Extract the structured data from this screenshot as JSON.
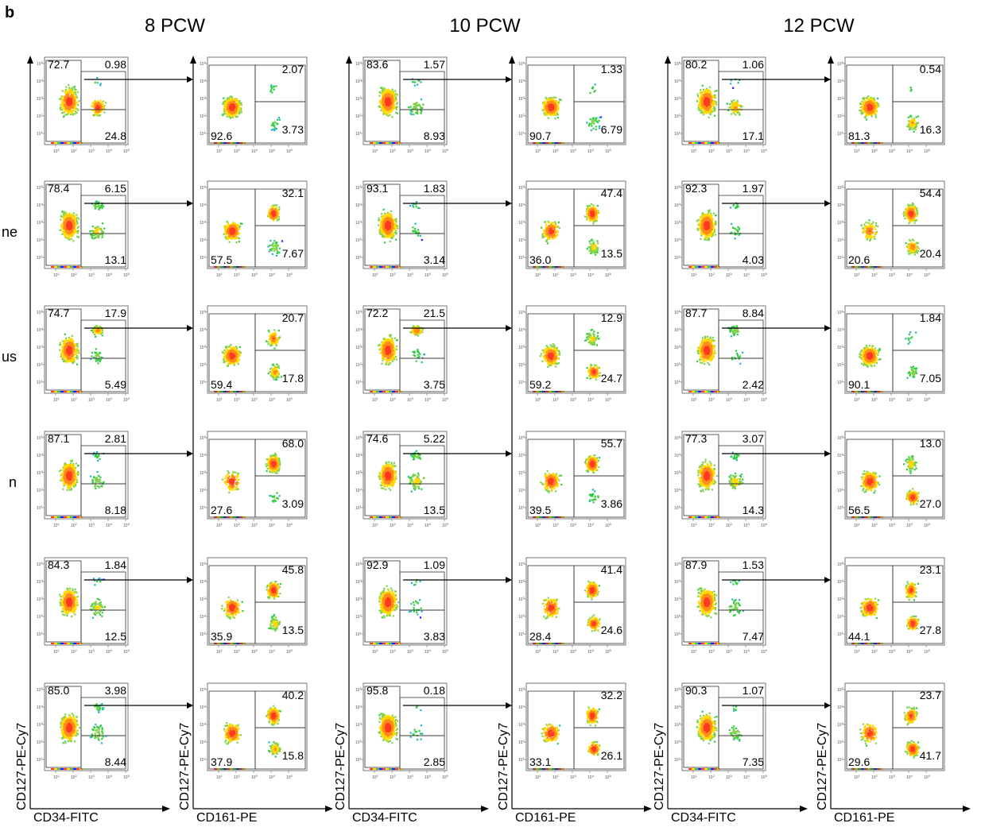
{
  "figure": {
    "panel_letter": "b",
    "row_label_fragments": [
      "",
      "ne",
      "us",
      "n",
      "",
      ""
    ]
  },
  "colors": {
    "low_density": "#1a1aff",
    "mid_density": "#2ecc40",
    "high_density": "#ffd700",
    "peak_density": "#ff3b1f",
    "gate_line": "#333333",
    "axis": "#000000"
  },
  "chart_data": {
    "type": "scatter",
    "plot_kind": "flow cytometry density dot plots (log-scale axes, quadrant gates)",
    "axis_scale": "log",
    "tick_exponents": [
      1,
      2,
      3,
      4,
      5
    ],
    "groups": [
      {
        "title": "8 PCW",
        "left_xlabel": "CD34-FITC",
        "left_ylabel": "CD127-PE-Cy7",
        "right_xlabel": "CD161-PE",
        "right_ylabel": "CD127-PE-Cy7",
        "rows": [
          {
            "left": {
              "ul": "72.7",
              "ur": "0.98",
              "lr": "24.8"
            },
            "right": {
              "ur": "2.07",
              "ll": "92.6",
              "lr": "3.73"
            }
          },
          {
            "left": {
              "ul": "78.4",
              "ur": "6.15",
              "lr": "13.1"
            },
            "right": {
              "ur": "32.1",
              "ll": "57.5",
              "lr": "7.67"
            }
          },
          {
            "left": {
              "ul": "74.7",
              "ur": "17.9",
              "lr": "5.49"
            },
            "right": {
              "ur": "20.7",
              "ll": "59.4",
              "lr": "17.8"
            }
          },
          {
            "left": {
              "ul": "87.1",
              "ur": "2.81",
              "lr": "8.18"
            },
            "right": {
              "ur": "68.0",
              "ll": "27.6",
              "lr": "3.09"
            }
          },
          {
            "left": {
              "ul": "84.3",
              "ur": "1.84",
              "lr": "12.5"
            },
            "right": {
              "ur": "45.8",
              "ll": "35.9",
              "lr": "13.5"
            }
          },
          {
            "left": {
              "ul": "85.0",
              "ur": "3.98",
              "lr": "8.44"
            },
            "right": {
              "ur": "40.2",
              "ll": "37.9",
              "lr": "15.8"
            }
          }
        ]
      },
      {
        "title": "10 PCW",
        "left_xlabel": "CD34-FITC",
        "left_ylabel": "CD127-PE-Cy7",
        "right_xlabel": "CD161-PE",
        "right_ylabel": "CD127-PE-Cy7",
        "rows": [
          {
            "left": {
              "ul": "83.6",
              "ur": "1.57",
              "lr": "8.93"
            },
            "right": {
              "ur": "1.33",
              "ll": "90.7",
              "lr": "6.79"
            }
          },
          {
            "left": {
              "ul": "93.1",
              "ur": "1.83",
              "lr": "3.14"
            },
            "right": {
              "ur": "47.4",
              "ll": "36.0",
              "lr": "13.5"
            }
          },
          {
            "left": {
              "ul": "72.2",
              "ur": "21.5",
              "lr": "3.75"
            },
            "right": {
              "ur": "12.9",
              "ll": "59.2",
              "lr": "24.7"
            }
          },
          {
            "left": {
              "ul": "74.6",
              "ur": "5.22",
              "lr": "13.5"
            },
            "right": {
              "ur": "55.7",
              "ll": "39.5",
              "lr": "3.86"
            }
          },
          {
            "left": {
              "ul": "92.9",
              "ur": "1.09",
              "lr": "3.83"
            },
            "right": {
              "ur": "41.4",
              "ll": "28.4",
              "lr": "24.6"
            }
          },
          {
            "left": {
              "ul": "95.8",
              "ur": "0.18",
              "lr": "2.85"
            },
            "right": {
              "ur": "32.2",
              "ll": "33.1",
              "lr": "26.1"
            }
          }
        ]
      },
      {
        "title": "12 PCW",
        "left_xlabel": "CD34-FITC",
        "left_ylabel": "CD127-PE-Cy7",
        "right_xlabel": "CD161-PE",
        "right_ylabel": "CD127-PE-Cy7",
        "rows": [
          {
            "left": {
              "ul": "80.2",
              "ur": "1.06",
              "lr": "17.1"
            },
            "right": {
              "ur": "0.54",
              "ll": "81.3",
              "lr": "16.3"
            }
          },
          {
            "left": {
              "ul": "92.3",
              "ur": "1.97",
              "lr": "4.03"
            },
            "right": {
              "ur": "54.4",
              "ll": "20.6",
              "lr": "20.4"
            }
          },
          {
            "left": {
              "ul": "87.7",
              "ur": "8.84",
              "lr": "2.42"
            },
            "right": {
              "ur": "1.84",
              "ll": "90.1",
              "lr": "7.05"
            }
          },
          {
            "left": {
              "ul": "77.3",
              "ur": "3.07",
              "lr": "14.3"
            },
            "right": {
              "ur": "13.0",
              "ll": "56.5",
              "lr": "27.0"
            }
          },
          {
            "left": {
              "ul": "87.9",
              "ur": "1.53",
              "lr": "7.47"
            },
            "right": {
              "ur": "23.1",
              "ll": "44.1",
              "lr": "27.8"
            }
          },
          {
            "left": {
              "ul": "90.3",
              "ur": "1.07",
              "lr": "7.35"
            },
            "right": {
              "ur": "23.7",
              "ll": "29.6",
              "lr": "41.7"
            }
          }
        ]
      }
    ]
  }
}
